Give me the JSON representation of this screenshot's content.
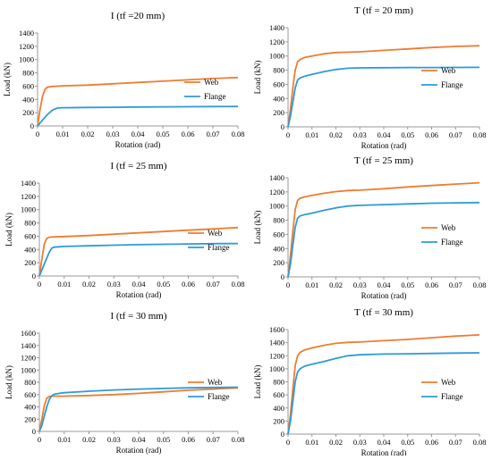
{
  "colors": {
    "web": "#ED7D31",
    "flange": "#2E9BD6",
    "axis": "#999999"
  },
  "chart_data": [
    {
      "type": "line",
      "title": "I (tf =20 mm)",
      "xlabel": "Rotation (rad)",
      "ylabel": "Load (kN)",
      "xlim": [
        0,
        0.08
      ],
      "ylim": [
        0,
        1400
      ],
      "xticks": [
        "0",
        "0.01",
        "0.02",
        "0.03",
        "0.04",
        "0.05",
        "0.06",
        "0.07",
        "0.08"
      ],
      "yticks": [
        "0",
        "200",
        "400",
        "600",
        "800",
        "1000",
        "1200",
        "1400"
      ],
      "grid": false,
      "legend": "right",
      "series": [
        {
          "name": "Web",
          "x": [
            0,
            0.001,
            0.002,
            0.003,
            0.004,
            0.006,
            0.01,
            0.02,
            0.03,
            0.04,
            0.05,
            0.06,
            0.07,
            0.08
          ],
          "y": [
            0,
            250,
            450,
            555,
            585,
            595,
            605,
            615,
            635,
            655,
            675,
            695,
            715,
            730
          ]
        },
        {
          "name": "Flange",
          "x": [
            0,
            0.002,
            0.004,
            0.006,
            0.008,
            0.01,
            0.02,
            0.03,
            0.04,
            0.05,
            0.06,
            0.07,
            0.08
          ],
          "y": [
            0,
            90,
            175,
            240,
            270,
            275,
            278,
            282,
            285,
            288,
            290,
            292,
            293
          ]
        }
      ]
    },
    {
      "type": "line",
      "title": "T (tf = 20 mm)",
      "xlabel": "Rotation (rad)",
      "ylabel": "Load (kN)",
      "xlim": [
        0,
        0.08
      ],
      "ylim": [
        0,
        1400
      ],
      "xticks": [
        "0",
        "0.01",
        "0.02",
        "0.03",
        "0.04",
        "0.05",
        "0.06",
        "0.07",
        "0.08"
      ],
      "yticks": [
        "0",
        "200",
        "400",
        "600",
        "800",
        "1000",
        "1200",
        "1400"
      ],
      "grid": false,
      "legend": "right",
      "series": [
        {
          "name": "Web",
          "x": [
            0,
            0.001,
            0.002,
            0.003,
            0.004,
            0.005,
            0.007,
            0.01,
            0.015,
            0.02,
            0.03,
            0.04,
            0.05,
            0.06,
            0.07,
            0.08
          ],
          "y": [
            0,
            250,
            550,
            800,
            920,
            950,
            980,
            1000,
            1030,
            1050,
            1060,
            1080,
            1100,
            1120,
            1135,
            1145
          ]
        },
        {
          "name": "Flange",
          "x": [
            0,
            0.001,
            0.002,
            0.003,
            0.004,
            0.005,
            0.007,
            0.01,
            0.015,
            0.02,
            0.025,
            0.03,
            0.04,
            0.05,
            0.06,
            0.07,
            0.08
          ],
          "y": [
            0,
            150,
            350,
            550,
            660,
            690,
            715,
            740,
            780,
            810,
            828,
            832,
            835,
            837,
            838,
            839,
            840
          ]
        }
      ]
    },
    {
      "type": "line",
      "title": "I (tf = 25 mm)",
      "xlabel": "Rotation (rad)",
      "ylabel": "Load (kN)",
      "xlim": [
        0,
        0.08
      ],
      "ylim": [
        0,
        1400
      ],
      "xticks": [
        "0",
        "0.01",
        "0.02",
        "0.03",
        "0.04",
        "0.05",
        "0.06",
        "0.07",
        "0.08"
      ],
      "yticks": [
        "0",
        "200",
        "400",
        "600",
        "800",
        "1000",
        "1200",
        "1400"
      ],
      "grid": false,
      "legend": "right",
      "series": [
        {
          "name": "Web",
          "x": [
            0,
            0.001,
            0.002,
            0.003,
            0.004,
            0.006,
            0.01,
            0.02,
            0.03,
            0.04,
            0.05,
            0.06,
            0.07,
            0.08
          ],
          "y": [
            0,
            250,
            480,
            565,
            585,
            590,
            595,
            610,
            630,
            650,
            670,
            690,
            710,
            730
          ]
        },
        {
          "name": "Flange",
          "x": [
            0,
            0.002,
            0.004,
            0.005,
            0.006,
            0.008,
            0.01,
            0.02,
            0.03,
            0.04,
            0.05,
            0.06,
            0.07,
            0.08
          ],
          "y": [
            0,
            180,
            360,
            420,
            435,
            440,
            445,
            455,
            465,
            472,
            478,
            483,
            487,
            490
          ]
        }
      ]
    },
    {
      "type": "line",
      "title": "T (tf = 25 mm)",
      "xlabel": "Rotation (rad)",
      "ylabel": "Load (kN)",
      "xlim": [
        0,
        0.08
      ],
      "ylim": [
        0,
        1400
      ],
      "xticks": [
        "0",
        "0.01",
        "0.02",
        "0.03",
        "0.04",
        "0.05",
        "0.06",
        "0.07",
        "0.08"
      ],
      "yticks": [
        "0",
        "200",
        "400",
        "600",
        "800",
        "1000",
        "1200",
        "1400"
      ],
      "grid": false,
      "legend": "right",
      "series": [
        {
          "name": "Web",
          "x": [
            0,
            0.001,
            0.002,
            0.003,
            0.004,
            0.005,
            0.007,
            0.01,
            0.015,
            0.02,
            0.025,
            0.03,
            0.04,
            0.05,
            0.06,
            0.07,
            0.08
          ],
          "y": [
            0,
            300,
            650,
            950,
            1080,
            1110,
            1130,
            1150,
            1180,
            1205,
            1220,
            1225,
            1245,
            1270,
            1290,
            1310,
            1330
          ]
        },
        {
          "name": "Flange",
          "x": [
            0,
            0.001,
            0.002,
            0.003,
            0.004,
            0.005,
            0.007,
            0.01,
            0.015,
            0.02,
            0.025,
            0.03,
            0.04,
            0.05,
            0.06,
            0.07,
            0.08
          ],
          "y": [
            0,
            180,
            450,
            700,
            830,
            860,
            880,
            900,
            940,
            975,
            1000,
            1010,
            1020,
            1030,
            1040,
            1045,
            1050
          ]
        }
      ]
    },
    {
      "type": "line",
      "title": "I (tf = 30 mm)",
      "xlabel": "Rotation (rad)",
      "ylabel": "Load (kN)",
      "xlim": [
        0,
        0.08
      ],
      "ylim": [
        0,
        1600
      ],
      "xticks": [
        "0",
        "0.01",
        "0.02",
        "0.03",
        "0.04",
        "0.05",
        "0.06",
        "0.07",
        "0.08"
      ],
      "yticks": [
        "0",
        "200",
        "400",
        "600",
        "800",
        "1000",
        "1200",
        "1400",
        "1600"
      ],
      "grid": false,
      "legend": "right",
      "series": [
        {
          "name": "Web",
          "x": [
            0,
            0.001,
            0.002,
            0.003,
            0.004,
            0.006,
            0.01,
            0.02,
            0.03,
            0.04,
            0.05,
            0.06,
            0.07,
            0.08
          ],
          "y": [
            0,
            200,
            420,
            540,
            570,
            575,
            575,
            585,
            600,
            620,
            645,
            670,
            690,
            710
          ]
        },
        {
          "name": "Flange",
          "x": [
            0,
            0.001,
            0.002,
            0.003,
            0.004,
            0.005,
            0.006,
            0.008,
            0.01,
            0.02,
            0.03,
            0.04,
            0.05,
            0.06,
            0.07,
            0.08
          ],
          "y": [
            0,
            100,
            250,
            400,
            520,
            580,
            605,
            620,
            630,
            655,
            675,
            690,
            700,
            710,
            715,
            720
          ]
        }
      ]
    },
    {
      "type": "line",
      "title": "T (tf = 30 mm)",
      "xlabel": "Rotation (rad)",
      "ylabel": "Load (kN)",
      "xlim": [
        0,
        0.08
      ],
      "ylim": [
        0,
        1600
      ],
      "xticks": [
        "0",
        "0.01",
        "0.02",
        "0.03",
        "0.04",
        "0.05",
        "0.06",
        "0.07",
        "0.08"
      ],
      "yticks": [
        "0",
        "200",
        "400",
        "600",
        "800",
        "1000",
        "1200",
        "1400",
        "1600"
      ],
      "grid": false,
      "legend": "right",
      "series": [
        {
          "name": "Web",
          "x": [
            0,
            0.001,
            0.002,
            0.003,
            0.004,
            0.005,
            0.007,
            0.01,
            0.015,
            0.02,
            0.025,
            0.03,
            0.04,
            0.05,
            0.06,
            0.07,
            0.08
          ],
          "y": [
            0,
            300,
            700,
            1050,
            1200,
            1250,
            1290,
            1320,
            1360,
            1390,
            1405,
            1410,
            1430,
            1450,
            1475,
            1500,
            1520
          ]
        },
        {
          "name": "Flange",
          "x": [
            0,
            0.001,
            0.002,
            0.003,
            0.004,
            0.005,
            0.007,
            0.01,
            0.015,
            0.02,
            0.025,
            0.03,
            0.04,
            0.05,
            0.06,
            0.07,
            0.08
          ],
          "y": [
            0,
            200,
            500,
            800,
            950,
            1000,
            1040,
            1070,
            1110,
            1160,
            1200,
            1215,
            1225,
            1230,
            1235,
            1240,
            1245
          ]
        }
      ]
    }
  ]
}
